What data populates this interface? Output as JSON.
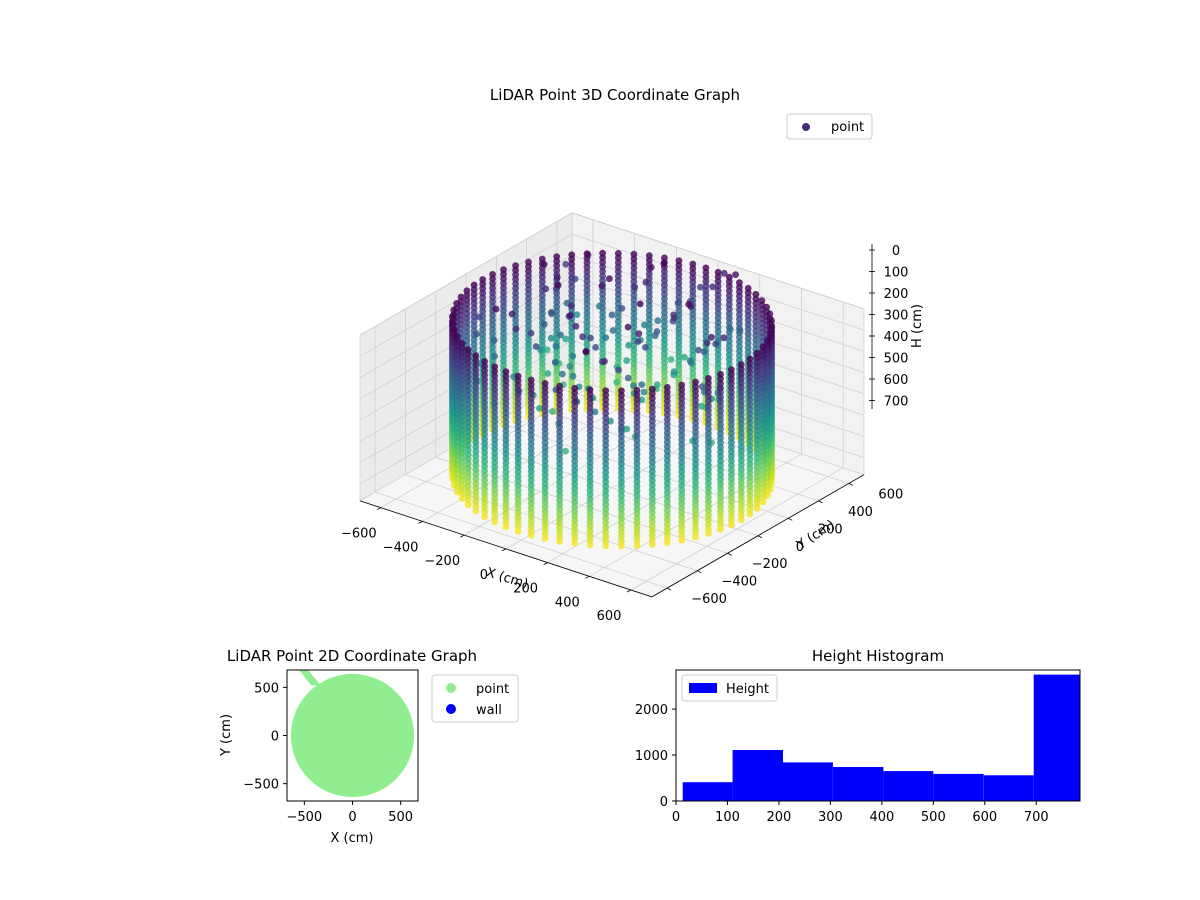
{
  "chart_data": [
    {
      "type": "scatter",
      "projection": "3d",
      "title": "LiDAR Point 3D Coordinate Graph",
      "xlabel": "X (cm)",
      "ylabel": "Y (cm)",
      "zlabel": "H (cm)",
      "xlim": [
        -700,
        700
      ],
      "ylim": [
        -700,
        700
      ],
      "zlim": [
        0,
        780
      ],
      "z_inverted": true,
      "xticks": [
        "−600",
        "−400",
        "−200",
        "0",
        "200",
        "400",
        "600"
      ],
      "yticks": [
        "−600",
        "−400",
        "−200",
        "0",
        "200",
        "400",
        "600"
      ],
      "zticks": [
        "0",
        "100",
        "200",
        "300",
        "400",
        "500",
        "600",
        "700"
      ],
      "grid": true,
      "colormap": "viridis",
      "legend": {
        "position": "top-right",
        "entries": [
          {
            "label": "point",
            "color": "#472c7a"
          }
        ]
      },
      "series": [
        {
          "name": "point",
          "shape": "cylindrical wall",
          "radius": 620,
          "height_range": [
            0,
            730
          ]
        }
      ]
    },
    {
      "type": "scatter",
      "title": "LiDAR Point 2D Coordinate Graph",
      "xlabel": "X (cm)",
      "ylabel": "Y (cm)",
      "xlim": [
        -680,
        680
      ],
      "ylim": [
        -680,
        680
      ],
      "xticks": [
        "−500",
        "0",
        "500"
      ],
      "yticks": [
        "−500",
        "0",
        "500"
      ],
      "legend": {
        "position": "outside-right",
        "entries": [
          {
            "label": "point",
            "color": "#90ee90"
          },
          {
            "label": "wall",
            "color": "#0000ff"
          }
        ]
      },
      "series": [
        {
          "name": "point",
          "shape": "filled disc",
          "radius": 640,
          "color": "#90ee90"
        }
      ]
    },
    {
      "type": "bar",
      "title": "Height Histogram",
      "xlim": [
        0,
        785
      ],
      "ylim": [
        0,
        2850
      ],
      "xticks": [
        "0",
        "100",
        "200",
        "300",
        "400",
        "500",
        "600",
        "700"
      ],
      "yticks": [
        "0",
        "1000",
        "2000"
      ],
      "color": "#0000ff",
      "legend": {
        "position": "top-left",
        "entries": [
          {
            "label": "Height",
            "color": "#0000ff"
          }
        ]
      },
      "bin_edges": [
        13,
        110,
        208,
        305,
        403,
        500,
        598,
        695,
        785
      ],
      "values": [
        410,
        1110,
        840,
        740,
        650,
        590,
        560,
        2750
      ]
    }
  ]
}
